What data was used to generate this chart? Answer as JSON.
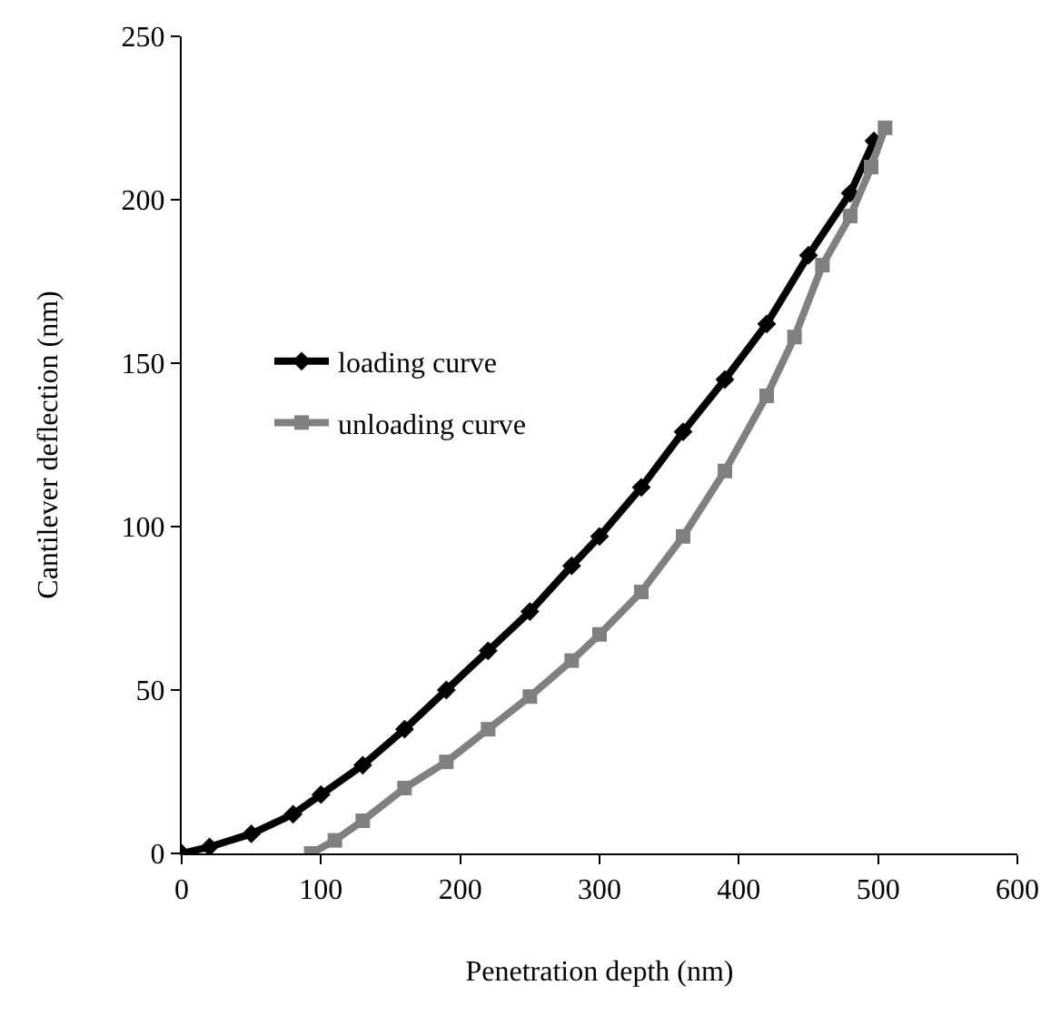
{
  "chart_data": {
    "type": "line",
    "xlabel": "Penetration depth (nm)",
    "ylabel": "Cantilever deflection (nm)",
    "xlim": [
      0,
      600
    ],
    "xticks": [
      0,
      100,
      200,
      300,
      400,
      500,
      600
    ],
    "ylim": [
      0,
      250
    ],
    "yticks": [
      0,
      50,
      100,
      150,
      200,
      250
    ],
    "grid": false,
    "legend": "top left",
    "series": [
      {
        "name": "loading curve",
        "color": "#000000",
        "marker": "diamond",
        "x": [
          0,
          20,
          50,
          80,
          100,
          130,
          160,
          190,
          220,
          250,
          280,
          300,
          330,
          360,
          390,
          420,
          450,
          480,
          497
        ],
        "values": [
          0,
          2,
          6,
          12,
          18,
          27,
          38,
          50,
          62,
          74,
          88,
          97,
          112,
          129,
          145,
          162,
          183,
          202,
          218
        ]
      },
      {
        "name": "unloading curve",
        "color": "#808080",
        "marker": "square",
        "x": [
          93,
          110,
          130,
          160,
          190,
          220,
          250,
          280,
          300,
          330,
          360,
          390,
          420,
          440,
          460,
          480,
          495,
          505
        ],
        "values": [
          0,
          4,
          10,
          20,
          28,
          38,
          48,
          59,
          67,
          80,
          97,
          117,
          140,
          158,
          180,
          195,
          210,
          222
        ]
      }
    ]
  }
}
